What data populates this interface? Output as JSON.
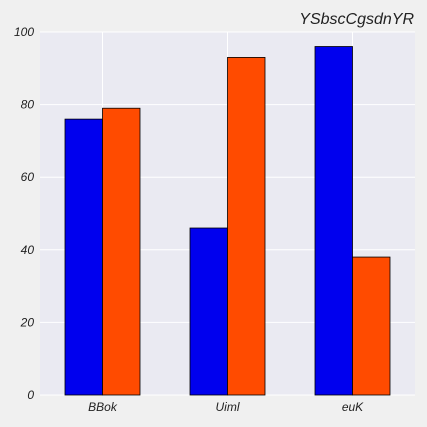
{
  "chart_data": {
    "type": "bar",
    "title": "YSbscCgsdnYR",
    "categories": [
      "BBok",
      "Uiml",
      "euK"
    ],
    "series": [
      {
        "values": [
          76,
          46,
          96
        ],
        "color": "#0000ee"
      },
      {
        "values": [
          79,
          93,
          38
        ],
        "color": "#ff4b00"
      }
    ],
    "ylim": [
      0,
      100
    ],
    "yticks": [
      0,
      20,
      40,
      60,
      80,
      100
    ],
    "grid": true,
    "plot_background": "#eaeaf2",
    "page_background": "#f0f0f0"
  }
}
